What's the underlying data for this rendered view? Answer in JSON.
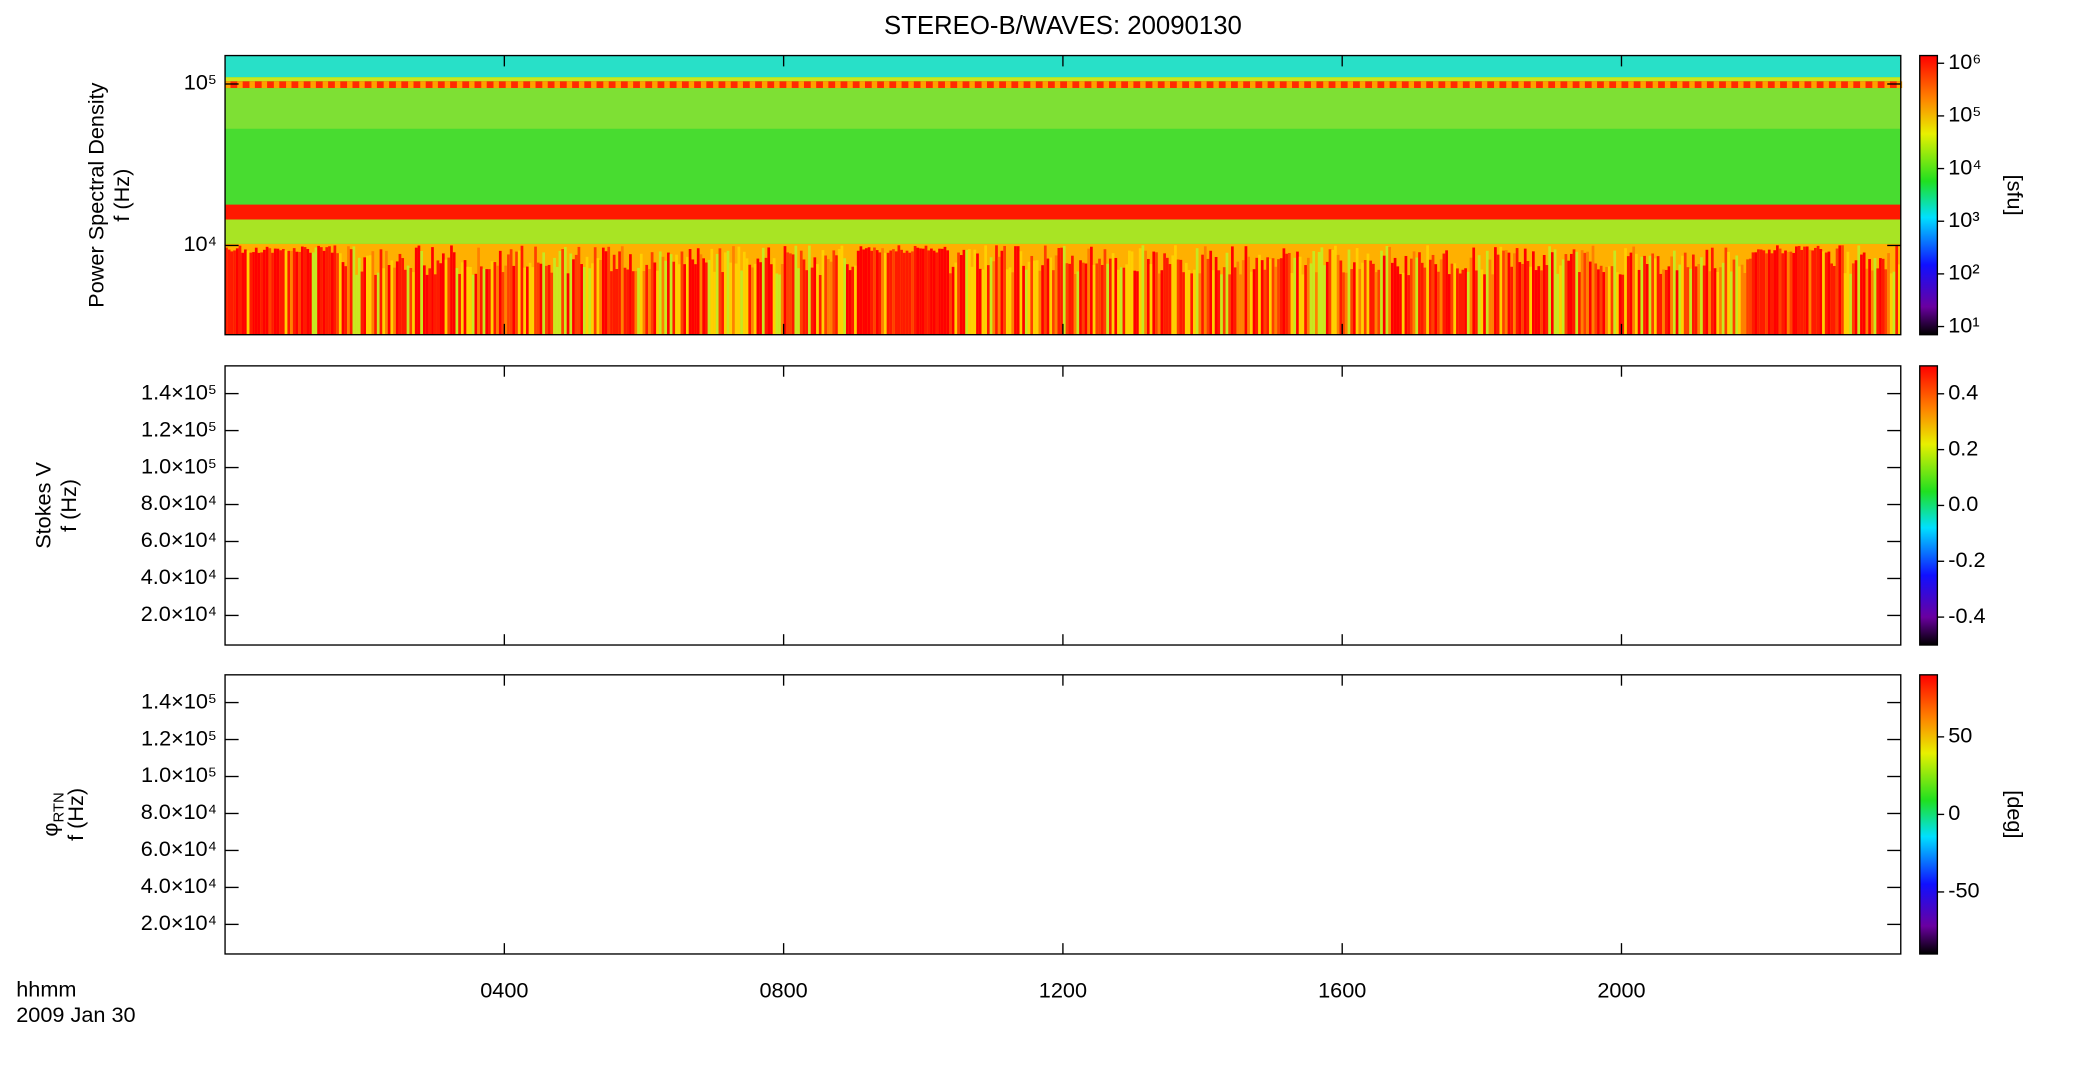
{
  "chart_data": [
    {
      "type": "spectrogram",
      "title": "STEREO-B/WAVES: 20090130",
      "ylabel": [
        "Power Spectral Density",
        "f (Hz)"
      ],
      "yscale": "log",
      "ylim": [
        2800,
        150000
      ],
      "yticks": [
        {
          "value": 100000,
          "label": "10⁵"
        },
        {
          "value": 10000,
          "label": "10⁴"
        }
      ],
      "xlim": [
        0,
        24
      ],
      "xticks": [
        {
          "value": 4,
          "label": "0400"
        },
        {
          "value": 8,
          "label": "0800"
        },
        {
          "value": 12,
          "label": "1200"
        },
        {
          "value": 16,
          "label": "1600"
        },
        {
          "value": 20,
          "label": "2000"
        }
      ],
      "colorbar_scale": "log",
      "clim": [
        7,
        1400000
      ],
      "cticks": [
        {
          "value": 1000000,
          "label": "10⁶"
        },
        {
          "value": 100000,
          "label": "10⁵"
        },
        {
          "value": 10000,
          "label": "10⁴"
        },
        {
          "value": 1000,
          "label": "10³"
        },
        {
          "value": 100,
          "label": "10²"
        },
        {
          "value": 10,
          "label": "10¹"
        }
      ],
      "colorbar_label": "[sfu]"
    },
    {
      "type": "spectrogram",
      "ylabel": [
        "Stokes V",
        "f (Hz)"
      ],
      "yscale": "linear",
      "ylim": [
        4000,
        155000
      ],
      "yticks": [
        {
          "value": 140000,
          "label": "1.4×10⁵"
        },
        {
          "value": 120000,
          "label": "1.2×10⁵"
        },
        {
          "value": 100000,
          "label": "1.0×10⁵"
        },
        {
          "value": 80000,
          "label": "8.0×10⁴"
        },
        {
          "value": 60000,
          "label": "6.0×10⁴"
        },
        {
          "value": 40000,
          "label": "4.0×10⁴"
        },
        {
          "value": 20000,
          "label": "2.0×10⁴"
        }
      ],
      "xlim": [
        0,
        24
      ],
      "xticks": [
        {
          "value": 4,
          "label": "0400"
        },
        {
          "value": 8,
          "label": "0800"
        },
        {
          "value": 12,
          "label": "1200"
        },
        {
          "value": 16,
          "label": "1600"
        },
        {
          "value": 20,
          "label": "2000"
        }
      ],
      "colorbar_scale": "linear",
      "clim": [
        -0.5,
        0.5
      ],
      "cticks": [
        0.4,
        0.2,
        {
          "value": 0,
          "label": "0.0"
        },
        -0.2,
        -0.4
      ]
    },
    {
      "type": "spectrogram",
      "ylabel_symbol": "φ",
      "ylabel_subscript": "RTN",
      "ylabel": [
        "f (Hz)"
      ],
      "yscale": "linear",
      "ylim": [
        4000,
        155000
      ],
      "yticks": [
        {
          "value": 140000,
          "label": "1.4×10⁵"
        },
        {
          "value": 120000,
          "label": "1.2×10⁵"
        },
        {
          "value": 100000,
          "label": "1.0×10⁵"
        },
        {
          "value": 80000,
          "label": "8.0×10⁴"
        },
        {
          "value": 60000,
          "label": "6.0×10⁴"
        },
        {
          "value": 40000,
          "label": "4.0×10⁴"
        },
        {
          "value": 20000,
          "label": "2.0×10⁴"
        }
      ],
      "xlim": [
        0,
        24
      ],
      "xticks": [
        {
          "value": 4,
          "label": "0400"
        },
        {
          "value": 8,
          "label": "0800"
        },
        {
          "value": 12,
          "label": "1200"
        },
        {
          "value": 16,
          "label": "1600"
        },
        {
          "value": 20,
          "label": "2000"
        }
      ],
      "xlabel": [
        "hhmm",
        "2009 Jan 30"
      ],
      "colorbar_scale": "linear",
      "clim": [
        -90,
        90
      ],
      "cticks": [
        50,
        0,
        -50
      ],
      "colorbar_label": "[deg]"
    }
  ]
}
